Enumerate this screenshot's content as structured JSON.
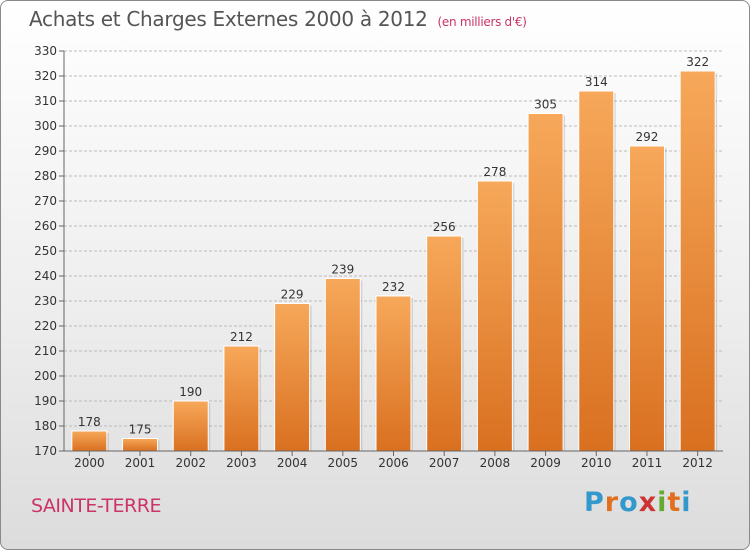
{
  "title": "Achats et Charges Externes 2000 à 2012",
  "subtitle": "(en milliers d'€)",
  "commune": "SAINTE-TERRE",
  "logo": {
    "text": "Proxiti",
    "letter_colors": [
      "#3399cc",
      "#e07020",
      "#3399cc",
      "#cc3333",
      "#66aa33",
      "#e07020",
      "#3399cc"
    ]
  },
  "colors": {
    "bar_light": "#f7a85a",
    "bar_dark": "#d97020",
    "grid": "#bbbbbb"
  },
  "chart_data": {
    "type": "bar",
    "categories": [
      "2000",
      "2001",
      "2002",
      "2003",
      "2004",
      "2005",
      "2006",
      "2007",
      "2008",
      "2009",
      "2010",
      "2011",
      "2012"
    ],
    "values": [
      178,
      175,
      190,
      212,
      229,
      239,
      232,
      256,
      278,
      305,
      314,
      292,
      322
    ],
    "ylim": [
      170,
      330
    ],
    "yticks": [
      170,
      180,
      190,
      200,
      210,
      220,
      230,
      240,
      250,
      260,
      270,
      280,
      290,
      300,
      310,
      320,
      330
    ],
    "grid": true,
    "data_labels": true
  }
}
